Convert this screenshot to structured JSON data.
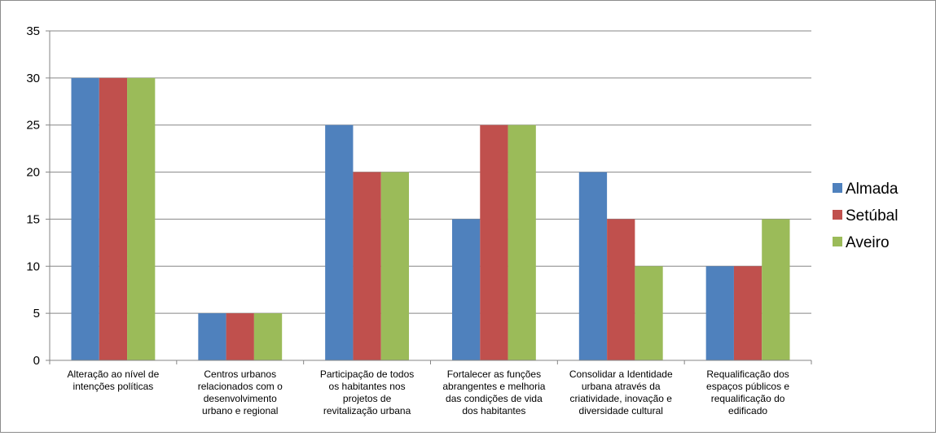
{
  "chart_data": {
    "type": "bar",
    "title": "",
    "xlabel": "",
    "ylabel": "",
    "ylim": [
      0,
      35
    ],
    "yticks": [
      0,
      5,
      10,
      15,
      20,
      25,
      30,
      35
    ],
    "grid": true,
    "legend_position": "right",
    "categories": [
      [
        "Alteração ao nível de",
        "intenções políticas"
      ],
      [
        "Centros urbanos",
        "relacionados com o",
        "desenvolvimento",
        "urbano e regional"
      ],
      [
        "Participação de todos",
        "os habitantes nos",
        "projetos de",
        "revitalização urbana"
      ],
      [
        "Fortalecer as funções",
        "abrangentes e melhoria",
        "das condições de vida",
        "dos habitantes"
      ],
      [
        "Consolidar a Identidade",
        "urbana através da",
        "criatividade, inovação e",
        "diversidade cultural"
      ],
      [
        "Requalificação dos",
        "espaços públicos e",
        "requalificação do",
        "edificado"
      ]
    ],
    "series": [
      {
        "name": "Almada",
        "color": "#4f81bd",
        "values": [
          30,
          5,
          25,
          15,
          20,
          10
        ]
      },
      {
        "name": "Setúbal",
        "color": "#c0504d",
        "values": [
          30,
          5,
          20,
          25,
          15,
          10
        ]
      },
      {
        "name": "Aveiro",
        "color": "#9bbb59",
        "values": [
          30,
          5,
          20,
          25,
          10,
          15
        ]
      }
    ]
  }
}
